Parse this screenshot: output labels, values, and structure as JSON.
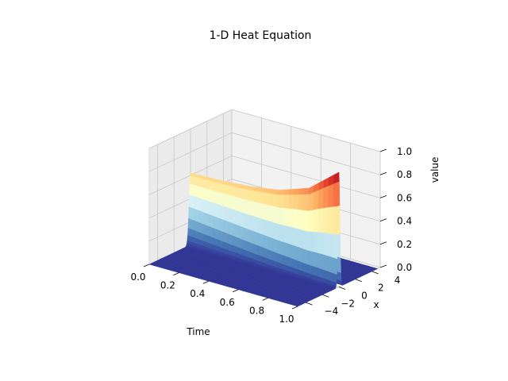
{
  "chart_data": {
    "type": "surface",
    "title": "1-D Heat Equation",
    "xlabel": "Time",
    "ylabel": "x",
    "zlabel": "value",
    "xlim": [
      0.0,
      1.0
    ],
    "ylim": [
      -5,
      5
    ],
    "zlim": [
      0.0,
      1.0
    ],
    "x_ticks": [
      "0.0",
      "0.2",
      "0.4",
      "0.6",
      "0.8",
      "1.0"
    ],
    "y_ticks": [
      "−4",
      "−2",
      "0",
      "2",
      "4"
    ],
    "z_ticks": [
      "0.0",
      "0.2",
      "0.4",
      "0.6",
      "0.8",
      "1.0"
    ],
    "colormap": "RdYlBu_r",
    "grid": true,
    "surface": {
      "description": "Heat-kernel solution u(t,x); peak at x = 0, amplitude rising with time",
      "peak_values": [
        {
          "time": 0.0,
          "value": 0.62
        },
        {
          "time": 0.2,
          "value": 0.63
        },
        {
          "time": 0.4,
          "value": 0.65
        },
        {
          "time": 0.6,
          "value": 0.69
        },
        {
          "time": 0.8,
          "value": 0.78
        },
        {
          "time": 1.0,
          "value": 0.99
        }
      ],
      "value_far_from_peak": 0.0
    }
  }
}
